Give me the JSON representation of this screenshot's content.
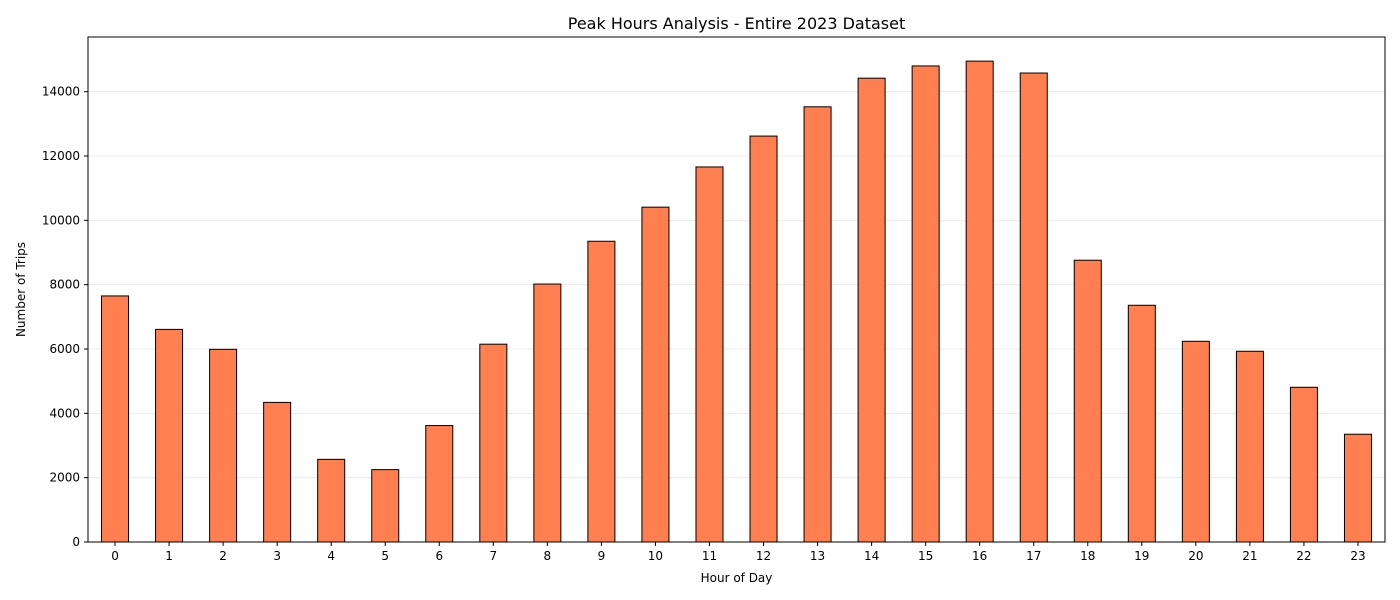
{
  "chart_data": {
    "type": "bar",
    "title": "Peak Hours Analysis - Entire 2023 Dataset",
    "xlabel": "Hour of Day",
    "ylabel": "Number of Trips",
    "categories": [
      "0",
      "1",
      "2",
      "3",
      "4",
      "5",
      "6",
      "7",
      "8",
      "9",
      "10",
      "11",
      "12",
      "13",
      "14",
      "15",
      "16",
      "17",
      "18",
      "19",
      "20",
      "21",
      "22",
      "23"
    ],
    "values": [
      7650,
      6610,
      5990,
      4340,
      2570,
      2250,
      3620,
      6150,
      8020,
      9350,
      10410,
      11660,
      12620,
      13530,
      14420,
      14800,
      14950,
      14580,
      8760,
      7360,
      6240,
      5930,
      4810,
      3350
    ],
    "ylim": [
      0,
      15700
    ],
    "yticks": [
      0,
      2000,
      4000,
      6000,
      8000,
      10000,
      12000,
      14000
    ],
    "grid": "horizontal",
    "bar_color": "#ff7f50",
    "edge_color": "#000000"
  }
}
